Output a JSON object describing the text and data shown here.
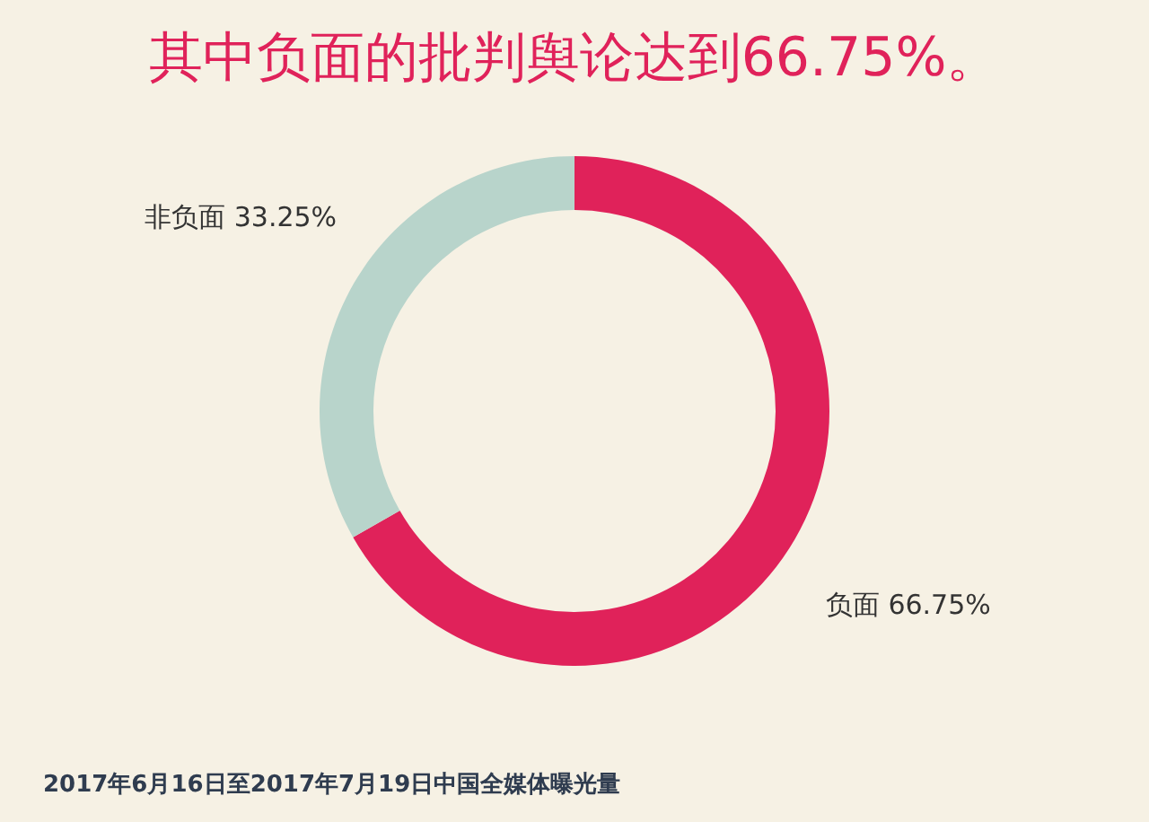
{
  "chart_data": {
    "type": "donut",
    "title": "其中负面的批判舆论达到66.75%。",
    "categories": [
      "负面",
      "非负面"
    ],
    "values": [
      66.75,
      33.25
    ],
    "colors": [
      "#e0225a",
      "#b8d4cb"
    ],
    "value_labels": [
      "66.75%",
      "33.25%"
    ],
    "legend": false,
    "annotations": [
      "2017年6月16日至2017年7月19日中国全媒体曝光量"
    ]
  }
}
